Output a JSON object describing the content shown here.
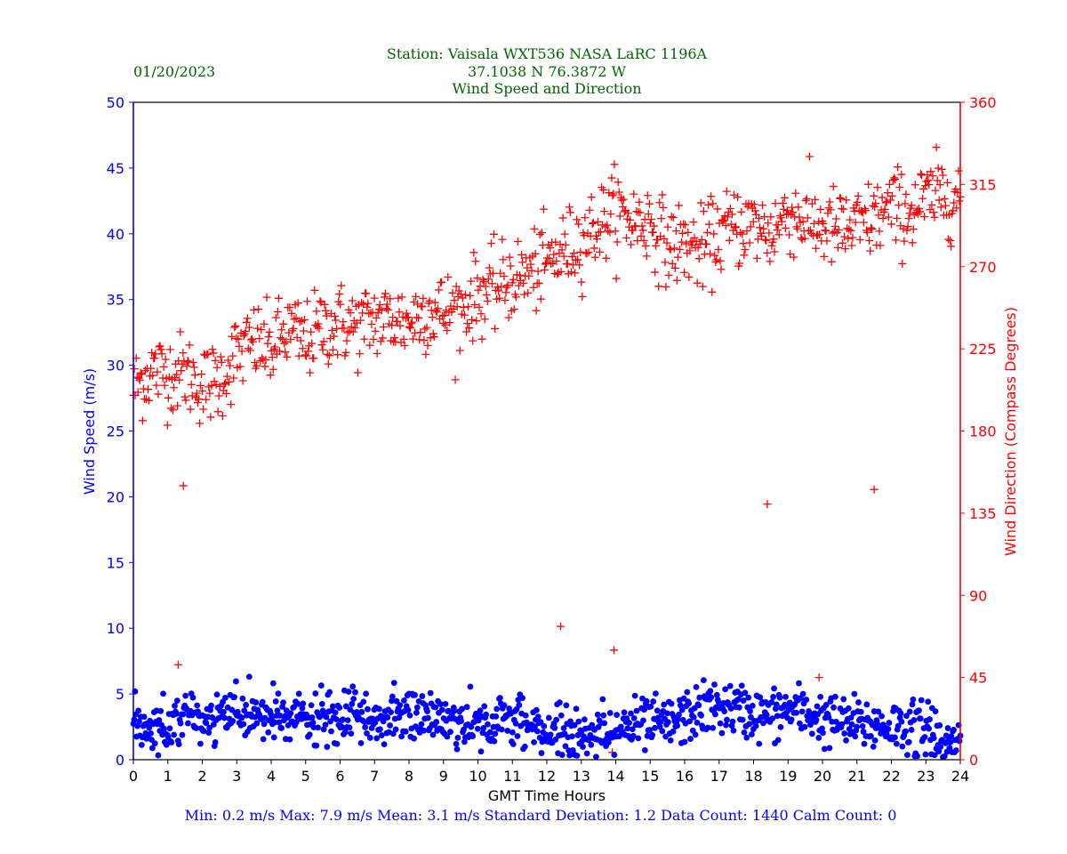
{
  "header": {
    "station_line": "Station:  Vaisala WXT536  NASA LaRC 1196A",
    "coords_line": "37.1038 N 76.3872 W",
    "chart_line": "Wind Speed and Direction",
    "date": "01/20/2023"
  },
  "footer": {
    "stats": "Min: 0.2 m/s   Max: 7.9 m/s   Mean: 3.1 m/s  Standard Deviation: 1.2  Data Count: 1440  Calm Count:  0"
  },
  "colors": {
    "speed": "#0000ff",
    "direction": "#ff0000",
    "title": "#006400"
  },
  "chart_data": {
    "type": "scatter",
    "title": "Wind Speed and Direction",
    "xlabel": "GMT Time Hours",
    "ylabel": "Wind Speed (m/s)",
    "y2label": "Wind Direction (Compass Degrees)",
    "xlim": [
      0,
      24
    ],
    "ylim": [
      0,
      50
    ],
    "y2lim": [
      0,
      360
    ],
    "x_ticks": [
      "0",
      "1",
      "2",
      "3",
      "4",
      "5",
      "6",
      "7",
      "8",
      "9",
      "10",
      "11",
      "12",
      "13",
      "14",
      "15",
      "16",
      "17",
      "18",
      "19",
      "20",
      "21",
      "22",
      "23",
      "24"
    ],
    "y_ticks": [
      "0",
      "5",
      "10",
      "15",
      "20",
      "25",
      "30",
      "35",
      "40",
      "45",
      "50"
    ],
    "y2_ticks": [
      "0",
      "45",
      "90",
      "135",
      "180",
      "225",
      "270",
      "315",
      "360"
    ],
    "series": [
      {
        "name": "Wind Speed",
        "axis": "left",
        "marker": "dot",
        "x": [
          0.0,
          0.5,
          1.0,
          1.5,
          2.0,
          2.5,
          3.0,
          3.5,
          4.0,
          4.5,
          5.0,
          5.5,
          6.0,
          6.5,
          7.0,
          7.5,
          8.0,
          8.5,
          9.0,
          9.5,
          10.0,
          10.5,
          11.0,
          11.5,
          12.0,
          12.5,
          13.0,
          13.5,
          14.0,
          14.5,
          15.0,
          15.5,
          16.0,
          16.5,
          17.0,
          17.5,
          18.0,
          18.5,
          19.0,
          19.5,
          20.0,
          20.5,
          21.0,
          21.5,
          22.0,
          22.5,
          23.0,
          23.5,
          24.0
        ],
        "values": [
          2.8,
          2.6,
          2.5,
          3.2,
          3.0,
          3.2,
          3.3,
          3.6,
          3.1,
          3.3,
          3.0,
          3.1,
          3.0,
          3.2,
          3.0,
          3.3,
          3.3,
          3.5,
          3.0,
          2.9,
          2.7,
          2.8,
          3.0,
          2.7,
          2.2,
          2.0,
          1.7,
          2.2,
          2.4,
          2.5,
          2.7,
          2.6,
          3.2,
          3.8,
          4.0,
          3.8,
          3.5,
          3.3,
          3.8,
          3.6,
          3.1,
          2.8,
          2.7,
          2.6,
          2.6,
          2.6,
          2.3,
          1.6,
          1.3
        ]
      },
      {
        "name": "Wind Direction",
        "axis": "right",
        "marker": "plus",
        "x": [
          0.0,
          0.5,
          1.0,
          1.5,
          2.0,
          2.5,
          3.0,
          3.5,
          4.0,
          4.5,
          5.0,
          5.5,
          6.0,
          6.5,
          7.0,
          7.5,
          8.0,
          8.5,
          9.0,
          9.5,
          10.0,
          10.5,
          11.0,
          11.5,
          12.0,
          12.5,
          13.0,
          13.5,
          14.0,
          14.5,
          15.0,
          15.5,
          16.0,
          16.5,
          17.0,
          17.5,
          18.0,
          18.5,
          19.0,
          19.5,
          20.0,
          20.5,
          21.0,
          21.5,
          22.0,
          22.5,
          23.0,
          23.5,
          24.0
        ],
        "values": [
          203,
          213,
          212,
          212,
          205,
          208,
          222,
          228,
          225,
          235,
          229,
          237,
          239,
          237,
          241,
          241,
          240,
          246,
          245,
          247,
          255,
          258,
          263,
          266,
          272,
          278,
          285,
          293,
          301,
          295,
          295,
          281,
          283,
          279,
          288,
          292,
          293,
          288,
          300,
          295,
          292,
          290,
          291,
          296,
          302,
          300,
          306,
          310,
          308
        ]
      }
    ],
    "outliers": [
      {
        "x": 1.45,
        "direction": 150
      },
      {
        "x": 18.4,
        "direction": 140
      },
      {
        "x": 21.5,
        "direction": 148
      },
      {
        "x": 12.4,
        "direction": 73
      },
      {
        "x": 13.95,
        "direction": 60
      },
      {
        "x": 19.9,
        "direction": 45
      },
      {
        "x": 1.3,
        "direction": 52
      },
      {
        "x": 14.9,
        "direction": 29
      },
      {
        "x": 13.9,
        "direction": 4
      }
    ]
  }
}
